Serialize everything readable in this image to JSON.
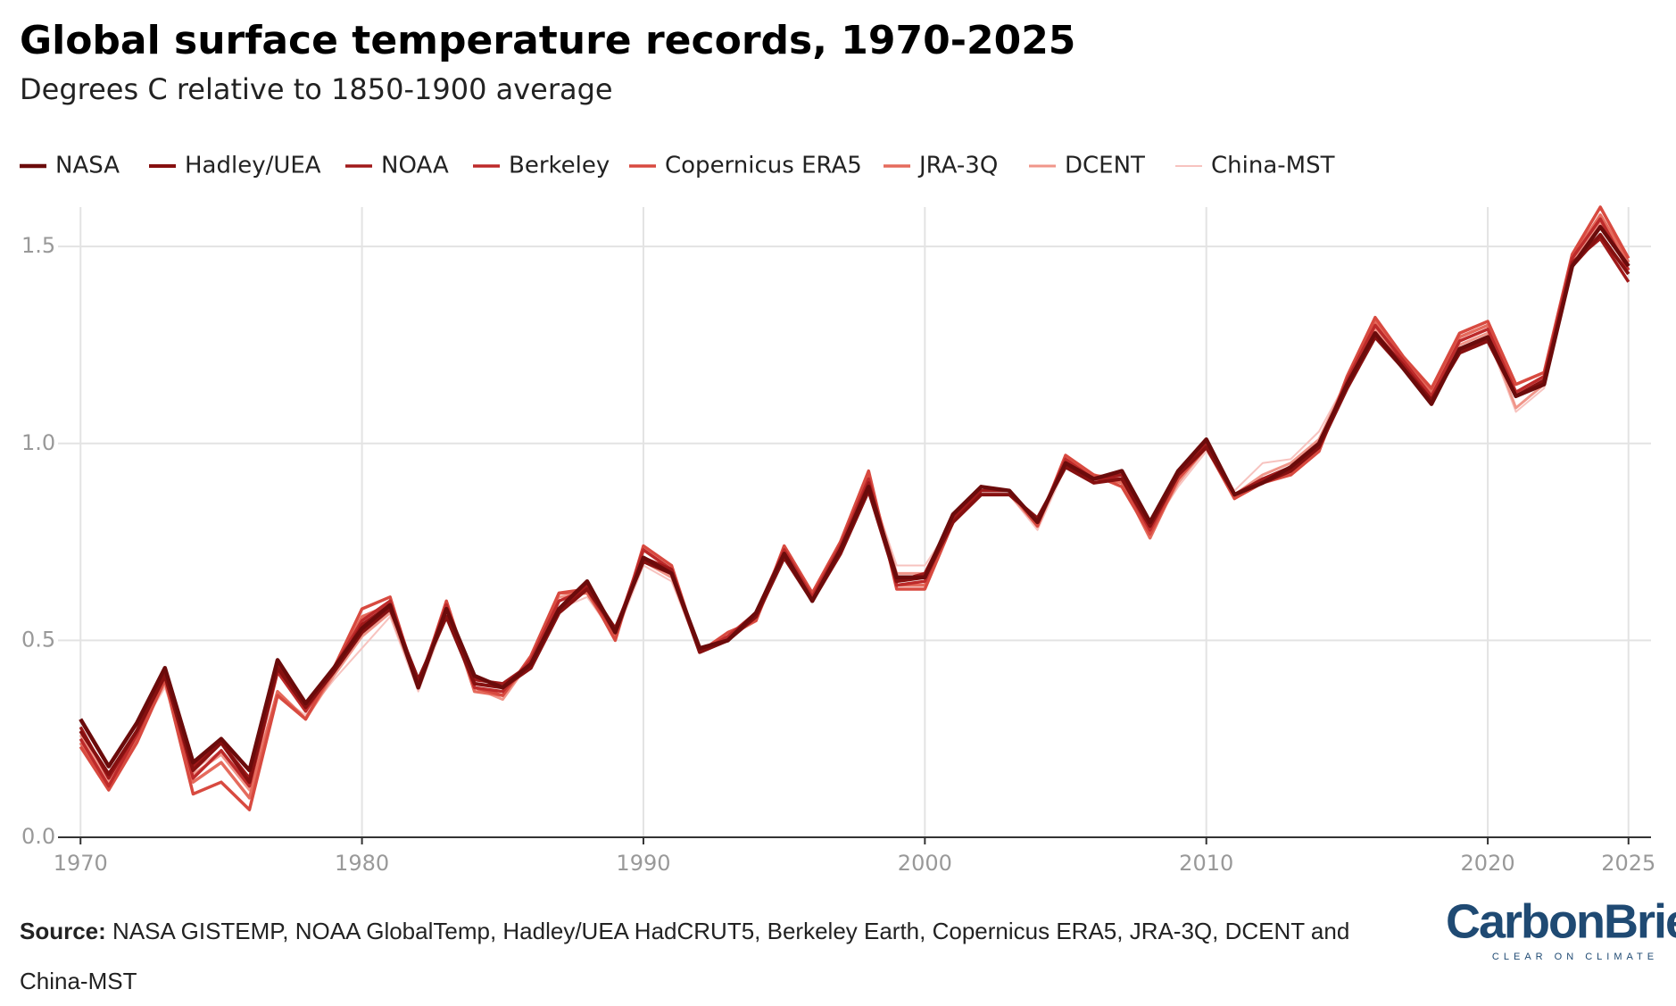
{
  "chart_data": {
    "type": "line",
    "title": "Global surface temperature records, 1970-2025",
    "subtitle": "Degrees C relative to 1850-1900 average",
    "source_label": "Source:",
    "source_text": "NASA GISTEMP, NOAA GlobalTemp, Hadley/UEA HadCRUT5, Berkeley Earth, Copernicus ERA5, JRA-3Q, DCENT and China-MST",
    "logo": "CarbonBrief",
    "logo_tagline": "CLEAR ON CLIMATE",
    "grid": true,
    "xlim": [
      1969.2,
      2025.8
    ],
    "xticks": [
      1970,
      1980,
      1990,
      2000,
      2010,
      2020,
      2025
    ],
    "ylim": [
      0,
      1.6
    ],
    "yticks": [
      {
        "value": 0,
        "label": "0.0"
      },
      0.5,
      {
        "value": 1,
        "label": "1.0"
      },
      1.5
    ],
    "x": [
      1970,
      1971,
      1972,
      1973,
      1974,
      1975,
      1976,
      1977,
      1978,
      1979,
      1980,
      1981,
      1982,
      1983,
      1984,
      1985,
      1986,
      1987,
      1988,
      1989,
      1990,
      1991,
      1992,
      1993,
      1994,
      1995,
      1996,
      1997,
      1998,
      1999,
      2000,
      2001,
      2002,
      2003,
      2004,
      2005,
      2006,
      2007,
      2008,
      2009,
      2010,
      2011,
      2012,
      2013,
      2014,
      2015,
      2016,
      2017,
      2018,
      2019,
      2020,
      2021,
      2022,
      2023,
      2024,
      2025
    ],
    "series": [
      {
        "name": "NASA",
        "color": "#6b0b0b",
        "values": [
          0.3,
          0.18,
          0.29,
          0.43,
          0.19,
          0.25,
          0.17,
          0.45,
          0.34,
          0.43,
          0.53,
          0.59,
          0.38,
          0.58,
          0.41,
          0.38,
          0.44,
          0.58,
          0.65,
          0.52,
          0.71,
          0.67,
          0.48,
          0.5,
          0.57,
          0.72,
          0.6,
          0.73,
          0.89,
          0.66,
          0.66,
          0.82,
          0.89,
          0.88,
          0.8,
          0.95,
          0.91,
          0.93,
          0.8,
          0.93,
          1.01,
          0.87,
          0.9,
          0.94,
          1.0,
          1.15,
          1.28,
          1.19,
          1.1,
          1.24,
          1.27,
          1.12,
          1.15,
          1.45,
          1.55,
          1.45
        ]
      },
      {
        "name": "Hadley/UEA",
        "color": "#861010",
        "values": [
          0.27,
          0.16,
          0.27,
          0.41,
          0.17,
          0.24,
          0.14,
          0.43,
          0.33,
          0.42,
          0.52,
          0.58,
          0.4,
          0.56,
          0.39,
          0.38,
          0.43,
          0.57,
          0.63,
          0.53,
          0.7,
          0.67,
          0.47,
          0.5,
          0.56,
          0.71,
          0.6,
          0.72,
          0.88,
          0.65,
          0.66,
          0.8,
          0.87,
          0.87,
          0.81,
          0.94,
          0.9,
          0.91,
          0.79,
          0.92,
          0.99,
          0.87,
          0.9,
          0.93,
          0.99,
          1.14,
          1.27,
          1.19,
          1.11,
          1.23,
          1.26,
          1.12,
          1.16,
          1.45,
          1.53,
          1.43
        ]
      },
      {
        "name": "NOAA",
        "color": "#a0191a",
        "values": [
          0.28,
          0.15,
          0.27,
          0.42,
          0.18,
          0.24,
          0.15,
          0.44,
          0.33,
          0.42,
          0.54,
          0.59,
          0.39,
          0.58,
          0.4,
          0.39,
          0.44,
          0.58,
          0.64,
          0.53,
          0.71,
          0.68,
          0.47,
          0.5,
          0.57,
          0.72,
          0.6,
          0.73,
          0.9,
          0.65,
          0.67,
          0.81,
          0.88,
          0.88,
          0.8,
          0.95,
          0.91,
          0.92,
          0.79,
          0.93,
          1.0,
          0.87,
          0.91,
          0.94,
          1.0,
          1.15,
          1.28,
          1.2,
          1.11,
          1.24,
          1.26,
          1.12,
          1.16,
          1.46,
          1.52,
          1.41
        ]
      },
      {
        "name": "Berkeley",
        "color": "#bd2a2a",
        "values": [
          0.25,
          0.13,
          0.26,
          0.42,
          0.15,
          0.22,
          0.13,
          0.42,
          0.32,
          0.43,
          0.55,
          0.6,
          0.39,
          0.59,
          0.38,
          0.37,
          0.45,
          0.6,
          0.63,
          0.52,
          0.73,
          0.68,
          0.47,
          0.51,
          0.57,
          0.73,
          0.61,
          0.74,
          0.91,
          0.64,
          0.65,
          0.81,
          0.88,
          0.88,
          0.8,
          0.96,
          0.91,
          0.91,
          0.78,
          0.92,
          1.0,
          0.87,
          0.91,
          0.93,
          0.99,
          1.16,
          1.3,
          1.21,
          1.12,
          1.26,
          1.29,
          1.13,
          1.17,
          1.47,
          1.57,
          1.44
        ]
      },
      {
        "name": "Copernicus ERA5",
        "color": "#d84a40",
        "values": [
          0.23,
          0.12,
          0.24,
          0.4,
          0.11,
          0.14,
          0.07,
          0.36,
          0.3,
          0.43,
          0.58,
          0.61,
          0.38,
          0.6,
          0.38,
          0.36,
          0.46,
          0.62,
          0.63,
          0.5,
          0.74,
          0.69,
          0.47,
          0.52,
          0.55,
          0.74,
          0.62,
          0.75,
          0.93,
          0.63,
          0.63,
          0.8,
          0.88,
          0.88,
          0.79,
          0.97,
          0.92,
          0.89,
          0.77,
          0.91,
          0.99,
          0.86,
          0.9,
          0.92,
          0.98,
          1.17,
          1.32,
          1.22,
          1.14,
          1.28,
          1.31,
          1.15,
          1.18,
          1.48,
          1.6,
          1.47
        ]
      },
      {
        "name": "JRA-3Q",
        "color": "#e56b5d",
        "values": [
          0.24,
          0.13,
          0.25,
          0.4,
          0.14,
          0.19,
          0.1,
          0.37,
          0.3,
          0.42,
          0.56,
          0.59,
          0.38,
          0.59,
          0.37,
          0.36,
          0.45,
          0.62,
          0.62,
          0.51,
          0.73,
          0.68,
          0.47,
          0.51,
          0.55,
          0.73,
          0.62,
          0.74,
          0.92,
          0.64,
          0.64,
          0.8,
          0.88,
          0.88,
          0.79,
          0.96,
          0.92,
          0.9,
          0.76,
          0.91,
          0.99,
          0.86,
          0.91,
          0.92,
          0.98,
          1.16,
          1.31,
          1.21,
          1.13,
          1.27,
          1.3,
          1.13,
          1.17,
          1.47,
          1.58,
          1.46
        ]
      },
      {
        "name": "DCENT",
        "color": "#f0968a",
        "values": [
          0.26,
          0.14,
          0.26,
          0.39,
          0.16,
          0.21,
          0.12,
          0.37,
          0.3,
          0.41,
          0.51,
          0.57,
          0.38,
          0.58,
          0.38,
          0.35,
          0.45,
          0.61,
          0.62,
          0.52,
          0.7,
          0.66,
          0.47,
          0.51,
          0.56,
          0.72,
          0.62,
          0.73,
          0.91,
          0.67,
          0.67,
          0.8,
          0.87,
          0.87,
          0.79,
          0.95,
          0.92,
          0.91,
          0.77,
          0.9,
          0.99,
          0.87,
          0.92,
          0.95,
          1.01,
          1.16,
          1.29,
          1.2,
          1.12,
          1.25,
          1.28,
          1.09,
          1.15,
          1.46,
          1.56,
          1.45
        ]
      },
      {
        "name": "China-MST",
        "color": "#f7c3bf",
        "values": [
          0.27,
          0.15,
          0.26,
          0.38,
          0.17,
          0.22,
          0.14,
          0.36,
          0.31,
          0.4,
          0.48,
          0.56,
          0.37,
          0.56,
          0.38,
          0.36,
          0.44,
          0.58,
          0.61,
          0.51,
          0.69,
          0.65,
          0.47,
          0.51,
          0.55,
          0.71,
          0.61,
          0.72,
          0.9,
          0.69,
          0.69,
          0.8,
          0.87,
          0.87,
          0.78,
          0.94,
          0.91,
          0.91,
          0.78,
          0.89,
          0.98,
          0.88,
          0.95,
          0.96,
          1.03,
          1.16,
          1.28,
          1.19,
          1.11,
          1.24,
          1.27,
          1.08,
          1.14,
          1.45,
          1.55,
          1.44
        ]
      }
    ]
  }
}
